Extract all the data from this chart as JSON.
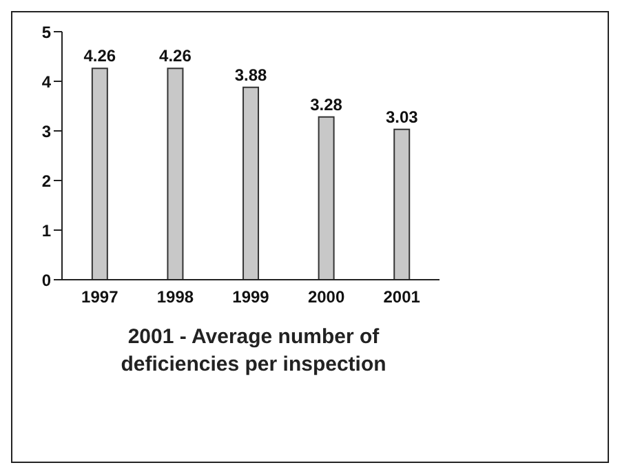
{
  "chart_data": {
    "type": "bar",
    "xlabel": "2001 - Average number of deficiencies per inspection",
    "categories": [
      "1997",
      "1998",
      "1999",
      "2000",
      "2001"
    ],
    "values": [
      4.26,
      4.26,
      3.88,
      3.28,
      3.03
    ],
    "color": "#c8c8c8",
    "ylim": [
      0,
      5
    ],
    "yticks": [
      0,
      1,
      2,
      3,
      4,
      5
    ],
    "data_labels": true
  }
}
